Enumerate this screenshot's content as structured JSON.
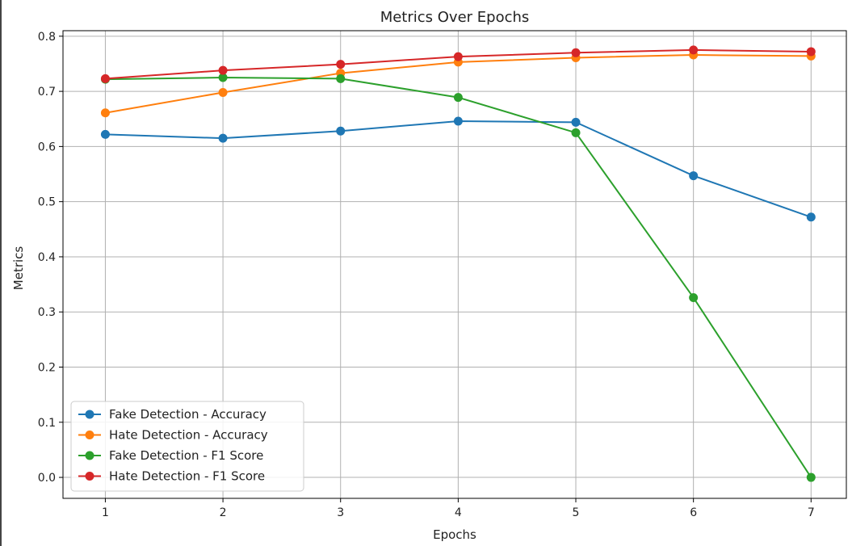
{
  "chart_data": {
    "type": "line",
    "title": "Metrics Over Epochs",
    "xlabel": "Epochs",
    "ylabel": "Metrics",
    "x": [
      1,
      2,
      3,
      4,
      5,
      6,
      7
    ],
    "xlim": [
      0.64,
      7.3
    ],
    "ylim": [
      -0.038,
      0.81
    ],
    "xticks": [
      "1",
      "2",
      "3",
      "4",
      "5",
      "6",
      "7"
    ],
    "yticks": [
      "0.0",
      "0.1",
      "0.2",
      "0.3",
      "0.4",
      "0.5",
      "0.6",
      "0.7",
      "0.8"
    ],
    "grid": true,
    "legend_position": "lower-left",
    "series": [
      {
        "name": "Fake Detection - Accuracy",
        "color": "#1f77b4",
        "values": [
          0.622,
          0.615,
          0.628,
          0.646,
          0.644,
          0.547,
          0.472
        ]
      },
      {
        "name": "Hate Detection - Accuracy",
        "color": "#ff7f0e",
        "values": [
          0.661,
          0.698,
          0.733,
          0.753,
          0.761,
          0.766,
          0.764
        ]
      },
      {
        "name": "Fake Detection - F1 Score",
        "color": "#2ca02c",
        "values": [
          0.722,
          0.725,
          0.723,
          0.689,
          0.625,
          0.326,
          0.0
        ]
      },
      {
        "name": "Hate Detection - F1 Score",
        "color": "#d62728",
        "values": [
          0.723,
          0.738,
          0.749,
          0.763,
          0.77,
          0.775,
          0.772
        ]
      }
    ]
  }
}
